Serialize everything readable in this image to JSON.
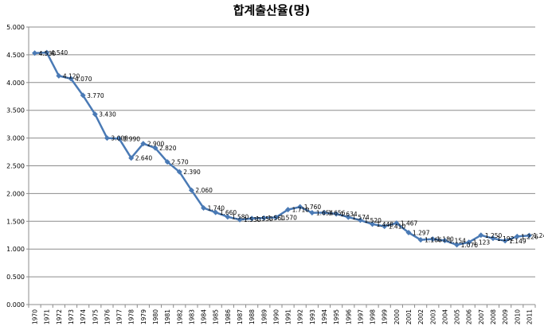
{
  "chart_data": {
    "type": "line",
    "title": "합계출산율(명)",
    "xlabel": "",
    "ylabel": "",
    "ylim": [
      0,
      5
    ],
    "ytick_step": 0.5,
    "yticks": [
      "0.000",
      "0.500",
      "1.000",
      "1.500",
      "2.000",
      "2.500",
      "3.000",
      "3.500",
      "4.000",
      "4.500",
      "5.000"
    ],
    "grid": "horizontal",
    "legend": "none",
    "categories": [
      "1970",
      "1971",
      "1972",
      "1973",
      "1974",
      "1975",
      "1976",
      "1977",
      "1978",
      "1979",
      "1980",
      "1981",
      "1982",
      "1983",
      "1984",
      "1985",
      "1986",
      "1987",
      "1988",
      "1989",
      "1990",
      "1991",
      "1992",
      "1993",
      "1994",
      "1995",
      "1996",
      "1997",
      "1998",
      "1999",
      "2000",
      "2001",
      "2002",
      "2003",
      "2004",
      "2005",
      "2006",
      "2007",
      "2008",
      "2009",
      "2010",
      "2011"
    ],
    "series": [
      {
        "color": "#4a7ab5",
        "values": [
          4.53,
          4.54,
          4.12,
          4.07,
          3.77,
          3.43,
          3.0,
          2.99,
          2.64,
          2.9,
          2.82,
          2.57,
          2.39,
          2.06,
          1.74,
          1.66,
          1.58,
          1.53,
          1.55,
          1.56,
          1.57,
          1.71,
          1.76,
          1.654,
          1.656,
          1.634,
          1.574,
          1.52,
          1.448,
          1.41,
          1.467,
          1.297,
          1.166,
          1.18,
          1.154,
          1.076,
          1.123,
          1.25,
          1.192,
          1.149,
          1.226,
          1.244
        ],
        "labels": [
          "4.530",
          "4.540",
          "4.120",
          "4.070",
          "3.770",
          "3.430",
          "3.000",
          "2.990",
          "2.640",
          "2.900",
          "2.820",
          "2.570",
          "2.390",
          "2.060",
          "1.740",
          "1.660",
          "1.580",
          "1.530",
          "1.550",
          "1.560",
          "1.570",
          "1.710",
          "1.760",
          "1.654",
          "1.656",
          "1.634",
          "1.574",
          "1.520",
          "1.448",
          "1.410",
          "1.467",
          "1.297",
          "1.166",
          "1.180",
          "1.154",
          "1.076",
          "1.123",
          "1.250",
          "1.192",
          "1.149",
          "1.226",
          "1.244"
        ]
      }
    ]
  }
}
